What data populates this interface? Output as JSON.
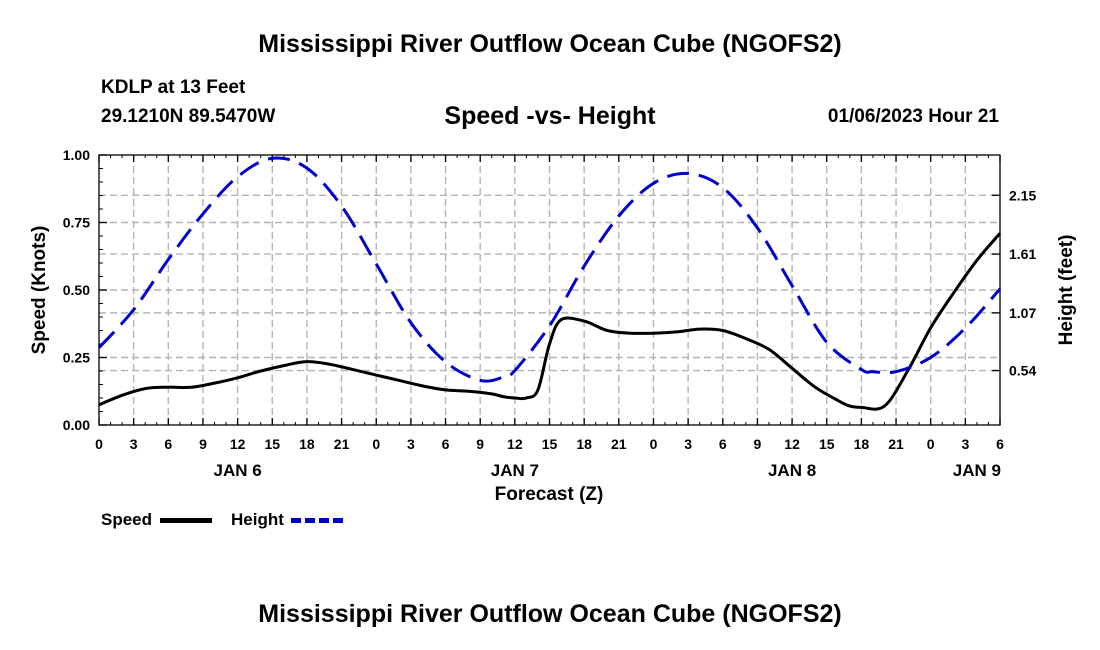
{
  "header": {
    "title": "Mississippi River Outflow Ocean Cube (NGOFS2)",
    "station": "KDLP at 13 Feet",
    "coords": "29.1210N  89.5470W",
    "subtitle": "Speed -vs- Height",
    "datetime": "01/06/2023 Hour 21"
  },
  "footer": {
    "title": "Mississippi River Outflow Ocean Cube (NGOFS2)"
  },
  "legend": {
    "speed_label": "Speed",
    "height_label": "Height"
  },
  "colors": {
    "speed": "#000000",
    "height": "#0000cc",
    "grid": "#b4b4b4"
  },
  "chart_data": {
    "type": "line",
    "title": "Speed -vs- Height",
    "xlabel": "Forecast (Z)",
    "ylabel_left": "Speed (Knots)",
    "ylabel_right": "Height (feet)",
    "xlim_hours": [
      0,
      78
    ],
    "x_ticks": [
      {
        "h": 0,
        "label": "0"
      },
      {
        "h": 3,
        "label": "3"
      },
      {
        "h": 6,
        "label": "6"
      },
      {
        "h": 9,
        "label": "9"
      },
      {
        "h": 12,
        "label": "12"
      },
      {
        "h": 15,
        "label": "15"
      },
      {
        "h": 18,
        "label": "18"
      },
      {
        "h": 21,
        "label": "21"
      },
      {
        "h": 24,
        "label": "0"
      },
      {
        "h": 27,
        "label": "3"
      },
      {
        "h": 30,
        "label": "6"
      },
      {
        "h": 33,
        "label": "9"
      },
      {
        "h": 36,
        "label": "12"
      },
      {
        "h": 39,
        "label": "15"
      },
      {
        "h": 42,
        "label": "18"
      },
      {
        "h": 45,
        "label": "21"
      },
      {
        "h": 48,
        "label": "0"
      },
      {
        "h": 51,
        "label": "3"
      },
      {
        "h": 54,
        "label": "6"
      },
      {
        "h": 57,
        "label": "9"
      },
      {
        "h": 60,
        "label": "12"
      },
      {
        "h": 63,
        "label": "15"
      },
      {
        "h": 66,
        "label": "18"
      },
      {
        "h": 69,
        "label": "21"
      },
      {
        "h": 72,
        "label": "0"
      },
      {
        "h": 75,
        "label": "3"
      },
      {
        "h": 78,
        "label": "6"
      }
    ],
    "day_labels": [
      {
        "h": 12,
        "label": "JAN 6"
      },
      {
        "h": 36,
        "label": "JAN 7"
      },
      {
        "h": 60,
        "label": "JAN 8"
      },
      {
        "h": 76,
        "label": "JAN 9"
      }
    ],
    "left_axis": {
      "ylim": [
        0,
        1.0
      ],
      "ticks": [
        {
          "v": 0,
          "label": "0.00"
        },
        {
          "v": 0.25,
          "label": "0.25"
        },
        {
          "v": 0.5,
          "label": "0.50"
        },
        {
          "v": 0.75,
          "label": "0.75"
        },
        {
          "v": 1.0,
          "label": "1.00"
        }
      ]
    },
    "right_axis": {
      "ylim": [
        0.04,
        2.52
      ],
      "ticks": [
        {
          "v": 0.54,
          "label": "0.54"
        },
        {
          "v": 1.07,
          "label": "1.07"
        },
        {
          "v": 1.61,
          "label": "1.61"
        },
        {
          "v": 2.15,
          "label": "2.15"
        }
      ]
    },
    "series": [
      {
        "name": "Speed",
        "axis": "left",
        "style": "solid",
        "x": [
          0,
          2,
          4,
          6,
          8,
          10,
          12,
          14,
          16,
          18,
          20,
          22,
          24,
          26,
          28,
          30,
          32,
          34,
          35,
          36,
          37,
          38,
          39,
          40,
          42,
          44,
          46,
          48,
          50,
          52,
          54,
          56,
          58,
          60,
          62,
          64,
          65,
          66,
          68,
          70,
          72,
          74,
          76,
          78
        ],
        "values": [
          0.075,
          0.11,
          0.135,
          0.14,
          0.14,
          0.155,
          0.175,
          0.2,
          0.22,
          0.235,
          0.225,
          0.205,
          0.185,
          0.165,
          0.145,
          0.13,
          0.125,
          0.115,
          0.105,
          0.1,
          0.1,
          0.13,
          0.3,
          0.39,
          0.385,
          0.35,
          0.34,
          0.34,
          0.345,
          0.355,
          0.35,
          0.32,
          0.28,
          0.21,
          0.14,
          0.09,
          0.07,
          0.065,
          0.07,
          0.2,
          0.36,
          0.49,
          0.61,
          0.71
        ]
      },
      {
        "name": "Height",
        "axis": "right",
        "style": "dashed",
        "x": [
          0,
          3,
          6,
          9,
          12,
          15,
          18,
          21,
          24,
          27,
          30,
          33,
          35,
          36,
          39,
          42,
          45,
          48,
          51,
          54,
          57,
          60,
          63,
          66,
          67,
          69,
          72,
          75,
          78
        ],
        "values": [
          0.75,
          1.1,
          1.56,
          1.98,
          2.32,
          2.49,
          2.4,
          2.05,
          1.52,
          0.98,
          0.62,
          0.45,
          0.48,
          0.54,
          0.95,
          1.5,
          1.96,
          2.26,
          2.35,
          2.22,
          1.85,
          1.32,
          0.8,
          0.55,
          0.53,
          0.53,
          0.66,
          0.93,
          1.29
        ]
      }
    ]
  }
}
